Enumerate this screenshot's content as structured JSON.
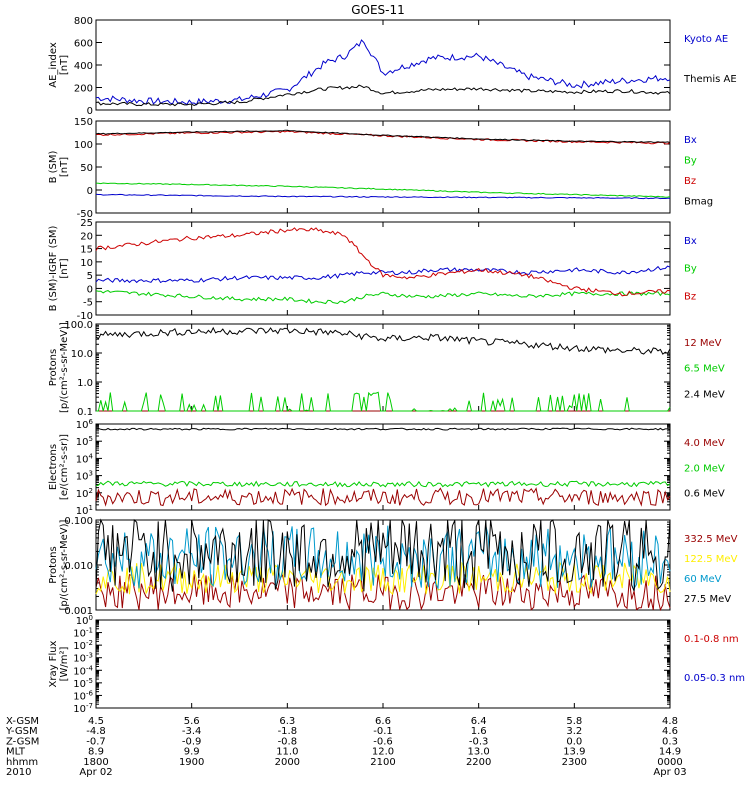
{
  "title": "GOES-11",
  "colors": {
    "axis": "#000000",
    "black": "#000000",
    "blue": "#0000cc",
    "green": "#00cc00",
    "red": "#cc0000",
    "darkred": "#990000",
    "yellow": "#ffee00",
    "cyan": "#0099cc"
  },
  "chart_data": [
    {
      "id": "ae",
      "type": "line",
      "ylabel": "AE_index\n[nT]",
      "ylim": [
        0,
        800
      ],
      "log": false,
      "yticks": [
        0,
        200,
        400,
        600,
        800
      ],
      "yticklabels": [
        "0",
        "200",
        "400",
        "600",
        "800"
      ],
      "x": [
        18.0,
        18.5,
        19.0,
        19.5,
        20.0,
        20.4,
        20.6,
        20.8,
        21.0,
        21.5,
        22.0,
        22.5,
        23.0,
        23.5,
        24.0
      ],
      "series": [
        {
          "name": "Kyoto AE",
          "color": "blue",
          "values": [
            110,
            80,
            70,
            90,
            180,
            420,
            480,
            620,
            330,
            460,
            480,
            300,
            220,
            260,
            290
          ]
        },
        {
          "name": "Themis AE",
          "color": "black",
          "values": [
            60,
            50,
            50,
            70,
            140,
            190,
            200,
            210,
            150,
            180,
            190,
            170,
            160,
            170,
            150
          ]
        }
      ]
    },
    {
      "id": "bsm",
      "type": "line",
      "ylabel": "B (SM)\n[nT]",
      "ylim": [
        -50,
        150
      ],
      "log": false,
      "yticks": [
        -50,
        0,
        50,
        100,
        150
      ],
      "yticklabels": [
        "-50",
        "0",
        "50",
        "100",
        "150"
      ],
      "x": [
        18.0,
        19.0,
        20.0,
        21.0,
        22.0,
        23.0,
        24.0
      ],
      "series": [
        {
          "name": "Bx",
          "color": "blue",
          "values": [
            -10,
            -12,
            -14,
            -15,
            -16,
            -17,
            -18
          ]
        },
        {
          "name": "By",
          "color": "green",
          "values": [
            15,
            12,
            8,
            2,
            -5,
            -10,
            -15
          ]
        },
        {
          "name": "Bz",
          "color": "red",
          "values": [
            120,
            124,
            127,
            118,
            110,
            105,
            102
          ]
        },
        {
          "name": "Bmag",
          "color": "black",
          "values": [
            122,
            126,
            129,
            119,
            111,
            106,
            104
          ]
        }
      ]
    },
    {
      "id": "bsmigrf",
      "type": "line",
      "ylabel": "B (SM)-IGRF (SM)\n[nT]",
      "ylim": [
        -10,
        25
      ],
      "log": false,
      "yticks": [
        -10,
        -5,
        0,
        5,
        10,
        15,
        20,
        25
      ],
      "yticklabels": [
        "-10",
        "-5",
        "0",
        "5",
        "10",
        "15",
        "20",
        "25"
      ],
      "x": [
        18.0,
        18.5,
        19.0,
        19.5,
        20.0,
        20.3,
        20.6,
        20.8,
        21.0,
        21.3,
        21.5,
        22.0,
        22.5,
        23.0,
        23.5,
        24.0
      ],
      "series": [
        {
          "name": "Bx",
          "color": "blue",
          "values": [
            3,
            3,
            3,
            4,
            4,
            4,
            5,
            6,
            6,
            6,
            7,
            7,
            6,
            7,
            6,
            8
          ]
        },
        {
          "name": "By",
          "color": "green",
          "values": [
            -1,
            -2,
            -3,
            -4,
            -4,
            -5,
            -5,
            -3,
            -2,
            -3,
            -3,
            -2,
            -3,
            -2,
            -2,
            -2
          ]
        },
        {
          "name": "Bz",
          "color": "red",
          "values": [
            15,
            17,
            19,
            20,
            22,
            22,
            20,
            12,
            5,
            4,
            5,
            7,
            5,
            0,
            -2,
            -1
          ]
        }
      ]
    },
    {
      "id": "protons_low",
      "type": "line",
      "ylabel": "Protons\n[p/(cm^2-s-sr-MeV)]",
      "ylim": [
        0.1,
        100
      ],
      "log": true,
      "yticks": [
        0.1,
        1,
        10,
        100
      ],
      "yticklabels": [
        "0.1",
        "1.0",
        "10.0",
        "100.0"
      ],
      "x": [
        18.0,
        19.0,
        20.0,
        20.5,
        21.0,
        21.5,
        22.0,
        22.5,
        23.0,
        23.5,
        24.0
      ],
      "series": [
        {
          "name": "12 MeV",
          "color": "darkred",
          "values": [
            0.1,
            0.1,
            0.1,
            0.1,
            0.1,
            0.1,
            0.1,
            0.1,
            0.1,
            0.1,
            0.1
          ]
        },
        {
          "name": "6.5 MeV",
          "color": "green",
          "values": [
            0.12,
            0.2,
            0.15,
            0.25,
            0.12,
            0.3,
            0.15,
            0.25,
            0.12,
            0.2,
            0.15
          ]
        },
        {
          "name": "2.4 MeV",
          "color": "black",
          "values": [
            40,
            55,
            60,
            50,
            30,
            35,
            25,
            20,
            15,
            12,
            11
          ]
        }
      ]
    },
    {
      "id": "electrons",
      "type": "line",
      "ylabel": "Electrons\n[e/(cm^2-s-sr)]",
      "ylim": [
        10,
        1000000
      ],
      "log": true,
      "yticks": [
        10,
        100,
        1000,
        10000,
        100000,
        1000000
      ],
      "yticklabels": [
        "10^1",
        "10^2",
        "10^3",
        "10^4",
        "10^5",
        "10^6"
      ],
      "x": [
        18.0,
        19.0,
        20.0,
        21.0,
        22.0,
        23.0,
        24.0
      ],
      "series": [
        {
          "name": "4.0 MeV",
          "color": "darkred",
          "values": [
            60,
            55,
            60,
            55,
            60,
            55,
            60
          ]
        },
        {
          "name": "2.0 MeV",
          "color": "green",
          "values": [
            350,
            330,
            320,
            310,
            320,
            330,
            320
          ]
        },
        {
          "name": "0.6 MeV",
          "color": "black",
          "values": [
            500000,
            500000,
            520000,
            510000,
            500000,
            520000,
            500000
          ]
        }
      ]
    },
    {
      "id": "protons_high",
      "type": "line",
      "ylabel": "Protons\n[p/(cm^2-s-sr-MeV)]",
      "ylim": [
        0.001,
        0.1
      ],
      "log": true,
      "yticks": [
        0.001,
        0.01,
        0.1
      ],
      "yticklabels": [
        "0.001",
        "0.010",
        "0.100"
      ],
      "x": [
        18.0,
        19.0,
        20.0,
        21.0,
        22.0,
        23.0,
        24.0
      ],
      "series": [
        {
          "name": "332.5 MeV",
          "color": "darkred",
          "values": [
            0.0025,
            0.0025,
            0.0025,
            0.0025,
            0.0025,
            0.0025,
            0.0025
          ]
        },
        {
          "name": "122.5 MeV",
          "color": "yellow",
          "values": [
            0.005,
            0.005,
            0.005,
            0.005,
            0.005,
            0.005,
            0.005
          ]
        },
        {
          "name": "60 MeV",
          "color": "cyan",
          "values": [
            0.015,
            0.015,
            0.015,
            0.015,
            0.015,
            0.015,
            0.015
          ]
        },
        {
          "name": "27.5 MeV",
          "color": "black",
          "values": [
            0.02,
            0.02,
            0.02,
            0.02,
            0.02,
            0.02,
            0.02
          ]
        }
      ]
    },
    {
      "id": "xray",
      "type": "line",
      "ylabel": "Xray Flux\n[W/m^2]",
      "ylim": [
        1e-07,
        1
      ],
      "log": true,
      "yticks": [
        1e-07,
        1e-06,
        1e-05,
        0.0001,
        0.001,
        0.01,
        0.1,
        1
      ],
      "yticklabels": [
        "10^-7",
        "10^-6",
        "10^-5",
        "10^-4",
        "10^-3",
        "10^-2",
        "10^-1",
        "10^0"
      ],
      "x": [],
      "series": [
        {
          "name": "0.1-0.8 nm",
          "color": "red",
          "values": []
        },
        {
          "name": "0.05-0.3 nm",
          "color": "blue",
          "values": []
        }
      ]
    }
  ],
  "xaxis": {
    "xlim": [
      18.0,
      24.0
    ],
    "ticks": [
      18,
      19,
      20,
      21,
      22,
      23,
      24
    ],
    "rows": [
      {
        "label": "X-GSM",
        "values": [
          "4.5",
          "5.6",
          "6.3",
          "6.6",
          "6.4",
          "5.8",
          "4.8"
        ]
      },
      {
        "label": "Y-GSM",
        "values": [
          "-4.8",
          "-3.4",
          "-1.8",
          "-0.1",
          "1.6",
          "3.2",
          "4.6"
        ]
      },
      {
        "label": "Z-GSM",
        "values": [
          "-0.7",
          "-0.9",
          "-0.8",
          "-0.6",
          "-0.3",
          "0.0",
          "0.3"
        ]
      },
      {
        "label": "MLT",
        "values": [
          "8.9",
          "9.9",
          "11.0",
          "12.0",
          "13.0",
          "13.9",
          "14.9"
        ]
      },
      {
        "label": "hhmm",
        "values": [
          "1800",
          "1900",
          "2000",
          "2100",
          "2200",
          "2300",
          "0000"
        ]
      },
      {
        "label": "2010",
        "values": [
          "Apr 02",
          "",
          "",
          "",
          "",
          "",
          "Apr 03"
        ]
      }
    ]
  }
}
